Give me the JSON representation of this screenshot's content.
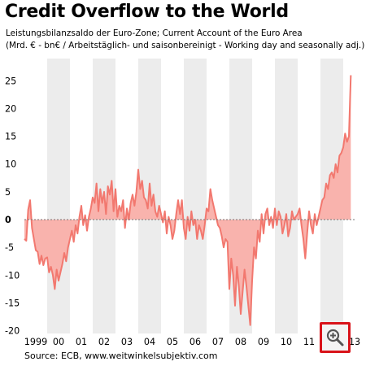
{
  "title": "Credit Overflow to the World",
  "subtitle_line1": "Leistungsbilanzsaldo der Euro-Zone; Current Account of the Euro Area",
  "subtitle_line2": "(Mrd. € - bn€ / Arbeitstäglich- und saisonbereinigt - Working day and seasonally adj.)",
  "source": "Source: ECB, www.weitwinkelsubjektiv.com",
  "zoom_icon": "zoom-in-magnifier-icon",
  "colors": {
    "fill": "#f9b3ad",
    "line": "#f2786f",
    "band": "#ececec"
  },
  "chart_data": {
    "type": "area",
    "title": "Credit Overflow to the World",
    "xlabel": "",
    "ylabel": "",
    "x_start": "1999-01",
    "x_frequency": "monthly",
    "x_ticks": [
      "1999",
      "00",
      "01",
      "02",
      "03",
      "04",
      "05",
      "06",
      "07",
      "08",
      "09",
      "10",
      "11",
      "12",
      "13"
    ],
    "y_ticks": [
      25,
      20,
      15,
      10,
      5,
      0,
      -5,
      -10,
      -15,
      -20
    ],
    "ylim": [
      -20.5,
      29
    ],
    "grid": false,
    "shaded_alternate_years": true,
    "values": [
      -3.5,
      -3.8,
      1.8,
      3.5,
      -1.5,
      -3.5,
      -5.5,
      -5.8,
      -8.0,
      -6.5,
      -8.2,
      -7.0,
      -6.8,
      -9.5,
      -8.5,
      -10.0,
      -12.5,
      -9.0,
      -11.0,
      -9.5,
      -8.0,
      -6.0,
      -7.5,
      -5.0,
      -3.5,
      -2.0,
      -4.0,
      -1.0,
      -2.5,
      0.5,
      2.5,
      -1.0,
      0.8,
      -2.0,
      0.5,
      2.0,
      4.0,
      3.0,
      6.5,
      1.5,
      5.5,
      3.0,
      5.0,
      1.0,
      6.0,
      4.5,
      7.0,
      1.5,
      5.5,
      0.5,
      2.5,
      1.5,
      3.5,
      -1.5,
      2.0,
      0.0,
      3.0,
      4.5,
      2.5,
      5.0,
      9.0,
      5.5,
      7.0,
      4.0,
      3.5,
      2.0,
      6.5,
      2.5,
      4.5,
      1.5,
      0.5,
      2.5,
      1.0,
      -0.5,
      1.5,
      -2.5,
      0.5,
      -1.0,
      -3.5,
      -2.0,
      1.0,
      3.5,
      1.0,
      3.5,
      -1.5,
      -3.5,
      0.5,
      -2.0,
      1.5,
      -1.0,
      0.0,
      -3.5,
      -1.0,
      -2.0,
      -3.5,
      -1.0,
      2.0,
      1.5,
      5.5,
      3.5,
      2.0,
      0.5,
      -1.0,
      -1.5,
      -3.0,
      -5.0,
      -3.5,
      -4.0,
      -12.5,
      -7.0,
      -10.0,
      -15.5,
      -8.5,
      -12.0,
      -17.0,
      -13.0,
      -9.0,
      -12.0,
      -15.5,
      -19.0,
      -11.0,
      -5.0,
      -7.0,
      -2.0,
      -4.0,
      1.0,
      -2.5,
      1.0,
      2.0,
      -1.0,
      0.5,
      -1.5,
      2.0,
      -1.0,
      1.5,
      0.5,
      -2.5,
      -1.0,
      1.0,
      -3.0,
      -1.5,
      1.5,
      0.0,
      0.5,
      1.0,
      2.0,
      -1.0,
      -3.5,
      -7.0,
      -2.5,
      1.5,
      -1.0,
      -2.5,
      1.0,
      -1.0,
      0.5,
      2.0,
      3.5,
      4.0,
      6.5,
      5.5,
      8.0,
      8.5,
      7.5,
      10.0,
      8.5,
      11.5,
      12.0,
      13.0,
      15.5,
      14.0,
      15.0,
      26.0
    ]
  }
}
